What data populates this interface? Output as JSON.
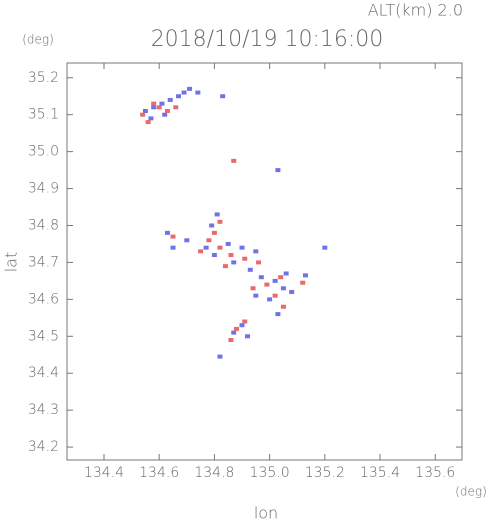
{
  "chart_data": {
    "type": "scatter",
    "title": "2018/10/19 10:16:00",
    "annotation": "ALT(km) 2.0",
    "y_unit": "(deg)",
    "x_unit": "(deg)",
    "xlabel": "lon",
    "ylabel": "lat",
    "xlim": [
      134.266,
      135.697
    ],
    "ylim": [
      34.165,
      35.24
    ],
    "xticks": [
      134.4,
      134.6,
      134.8,
      {
        "value": 135,
        "label": "135.0"
      },
      135.2,
      135.4,
      135.6
    ],
    "yticks": [
      34.2,
      34.3,
      34.4,
      34.5,
      34.6,
      34.7,
      34.8,
      34.9,
      {
        "value": 35,
        "label": "35.0"
      },
      35.1,
      35.2
    ],
    "series": [
      {
        "color": "#6f73e8",
        "x": [
          134.55,
          134.58,
          134.61,
          134.64,
          134.67,
          134.69,
          134.71,
          134.74,
          134.62,
          134.57,
          134.83,
          135.03,
          134.81,
          134.79,
          134.63,
          134.7,
          134.77,
          134.8,
          134.85,
          134.9,
          134.95,
          134.87,
          134.93,
          134.97,
          135.02,
          135.05,
          135.06,
          135.0,
          134.95,
          134.9,
          134.87,
          134.92,
          134.82,
          135.2,
          135.13,
          134.65,
          135.08,
          135.03
        ],
        "values": [
          35.11,
          35.12,
          35.13,
          35.14,
          35.15,
          35.16,
          35.17,
          35.16,
          35.1,
          35.09,
          35.15,
          34.95,
          34.83,
          34.8,
          34.78,
          34.76,
          34.74,
          34.72,
          34.75,
          34.74,
          34.73,
          34.7,
          34.68,
          34.66,
          34.65,
          34.63,
          34.67,
          34.6,
          34.61,
          34.53,
          34.51,
          34.5,
          34.445,
          34.74,
          34.665,
          34.74,
          34.62,
          34.56
        ]
      },
      {
        "color": "#e86a6a",
        "x": [
          134.54,
          134.56,
          134.6,
          134.63,
          134.58,
          134.66,
          134.87,
          134.82,
          134.8,
          134.65,
          134.78,
          134.82,
          134.86,
          134.91,
          134.84,
          134.96,
          134.99,
          135.04,
          135.02,
          134.94,
          134.88,
          134.91,
          134.86,
          135.12,
          134.75,
          135.05
        ],
        "values": [
          35.1,
          35.08,
          35.12,
          35.11,
          35.13,
          35.12,
          34.975,
          34.81,
          34.78,
          34.77,
          34.76,
          34.74,
          34.72,
          34.71,
          34.69,
          34.7,
          34.64,
          34.66,
          34.61,
          34.63,
          34.52,
          34.54,
          34.49,
          34.645,
          34.73,
          34.58
        ]
      }
    ]
  }
}
